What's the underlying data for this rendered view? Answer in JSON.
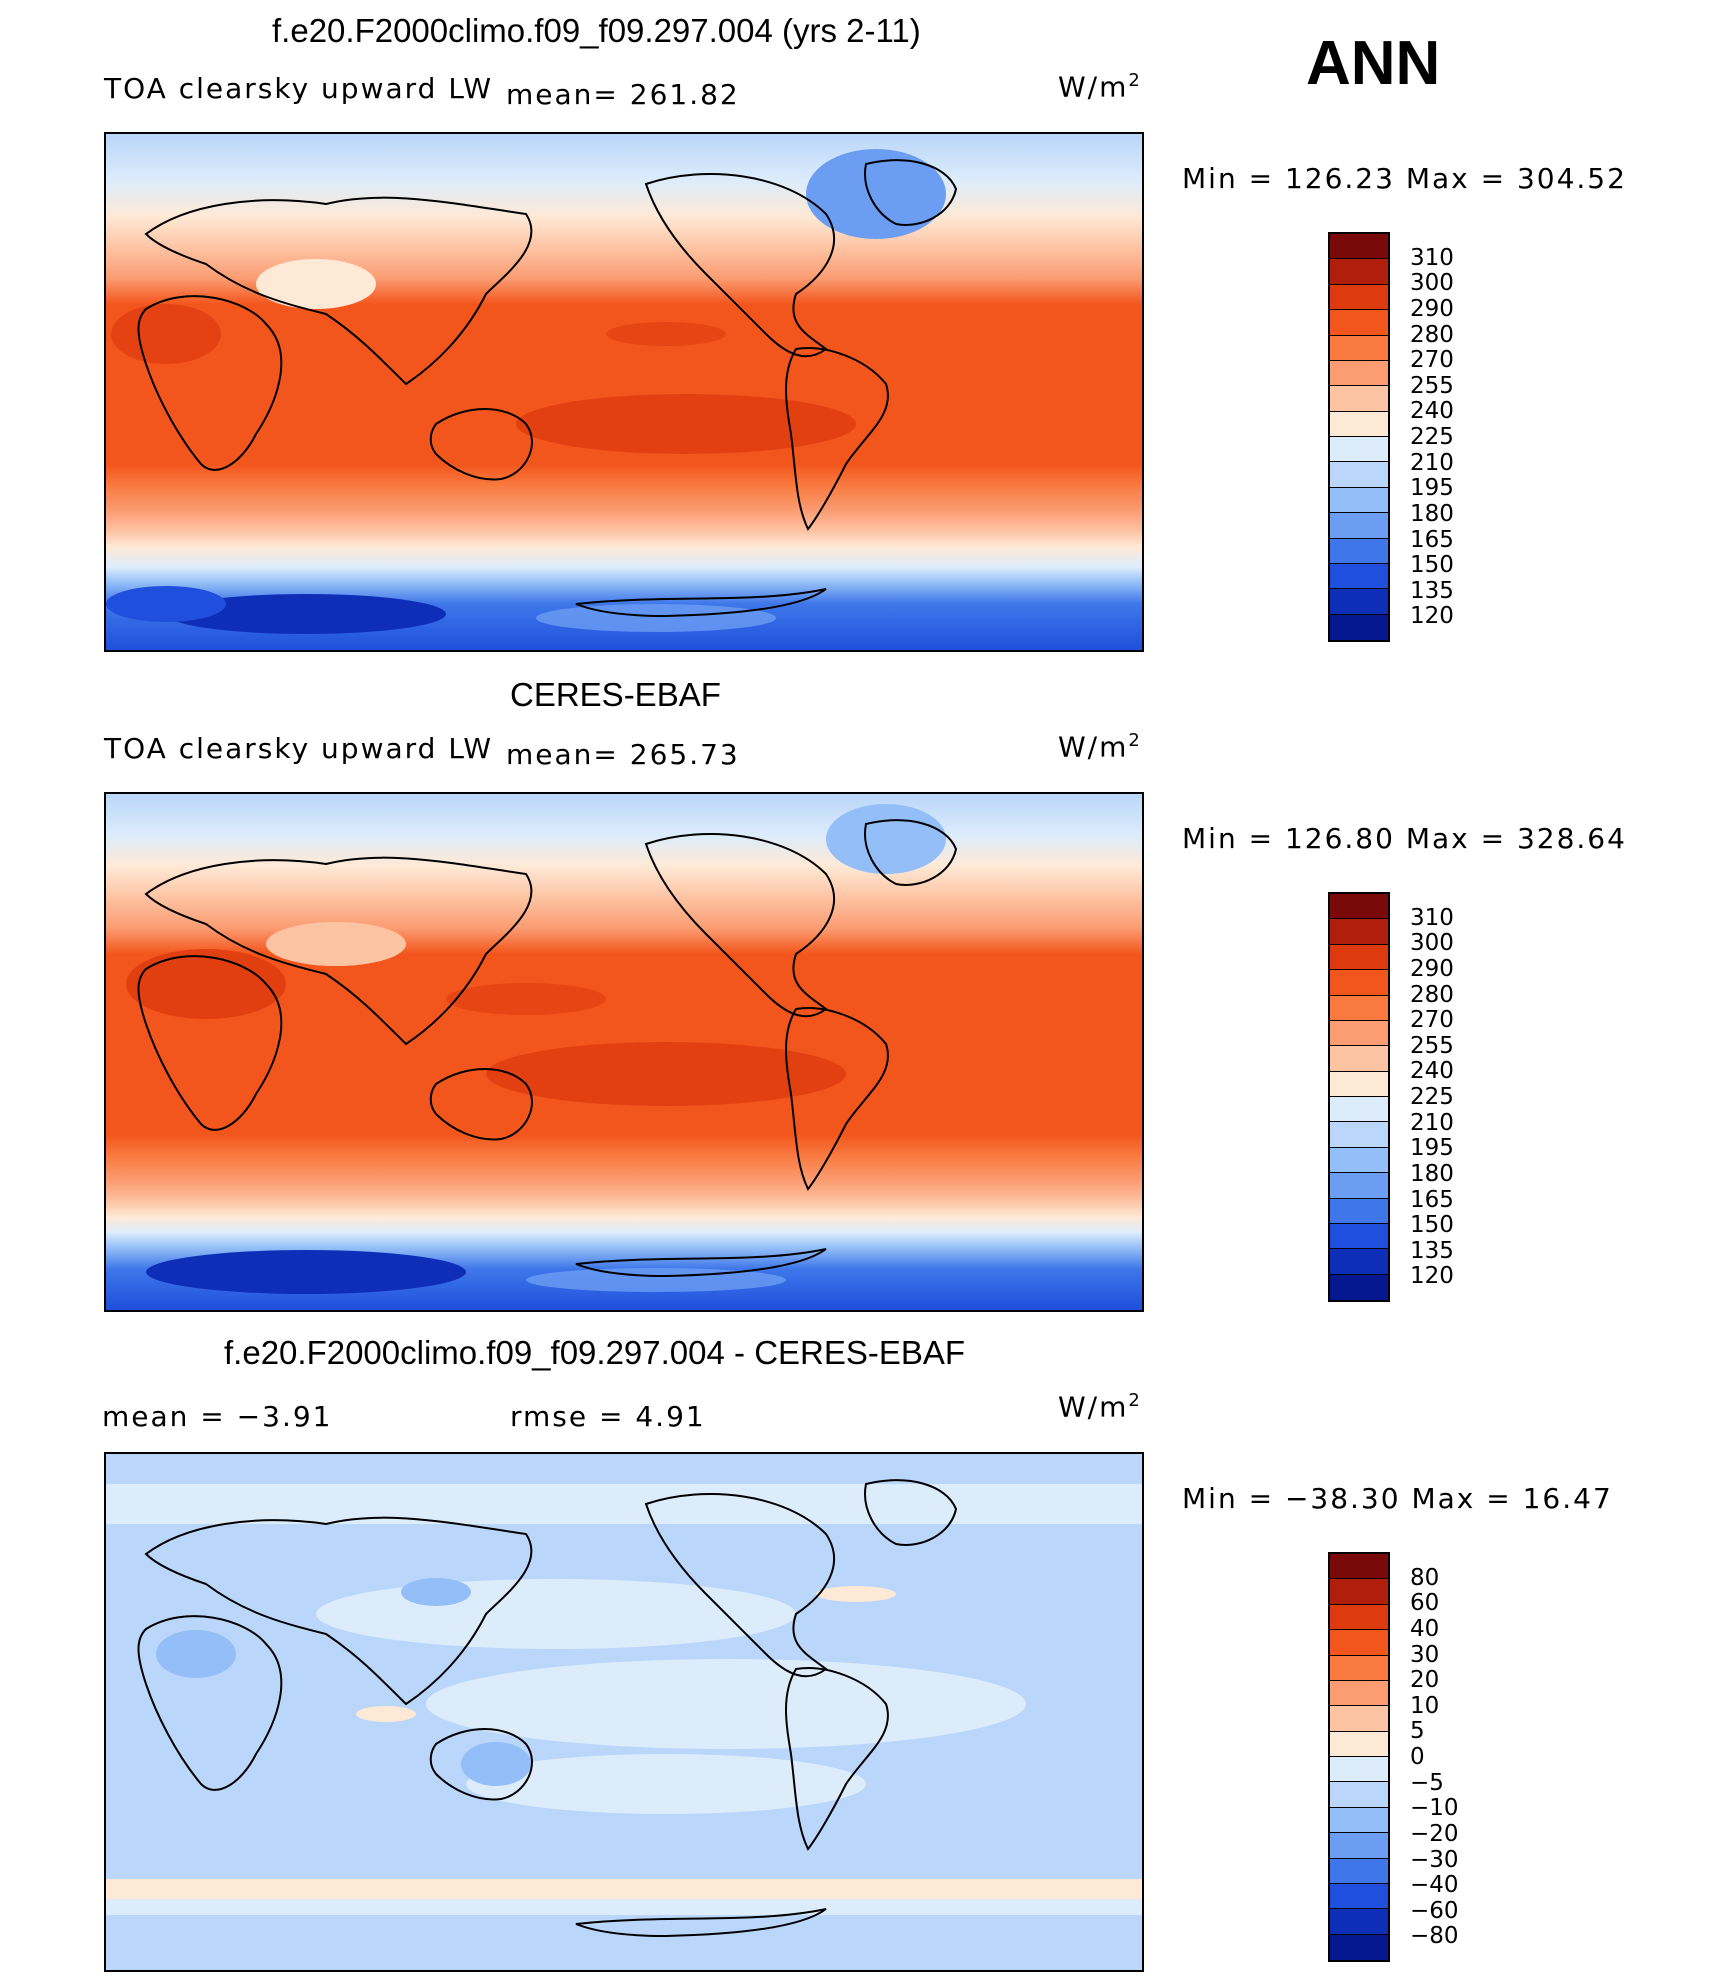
{
  "season": "ANN",
  "units_label": "W/m",
  "units_exp": "2",
  "panels": [
    {
      "title": "f.e20.F2000climo.f09_f09.297.004 (yrs 2-11)",
      "left_label": "TOA clearsky upward LW",
      "mean_label": "mean= 261.82",
      "minmax": "Min  =  126.23  Max  =  304.52"
    },
    {
      "title": "CERES-EBAF",
      "left_label": "TOA clearsky upward LW",
      "mean_label": "mean= 265.73",
      "minmax": "Min  =  126.80  Max  =  328.64"
    },
    {
      "title": "f.e20.F2000climo.f09_f09.297.004 - CERES-EBAF",
      "left_label": "mean  =    −3.91",
      "mean_label": "rmse  =     4.91",
      "minmax": "Min  =  −38.30  Max  =    16.47"
    }
  ],
  "colorbars": {
    "abs_levels": [
      "310",
      "300",
      "290",
      "280",
      "270",
      "255",
      "240",
      "225",
      "210",
      "195",
      "180",
      "165",
      "150",
      "135",
      "120"
    ],
    "diff_levels": [
      "80",
      "60",
      "40",
      "30",
      "20",
      "10",
      "5",
      "0",
      "−5",
      "−10",
      "−20",
      "−30",
      "−40",
      "−60",
      "−80"
    ],
    "colors": [
      "#7a0a0a",
      "#b01f0c",
      "#dd3a0f",
      "#f3561c",
      "#f9793f",
      "#fb9c72",
      "#fdc4a4",
      "#fee9d6",
      "#dcecfb",
      "#bad6fa",
      "#94bef7",
      "#6b9df2",
      "#3f77ea",
      "#1f4fdc",
      "#0e2eb8",
      "#061890"
    ]
  }
}
